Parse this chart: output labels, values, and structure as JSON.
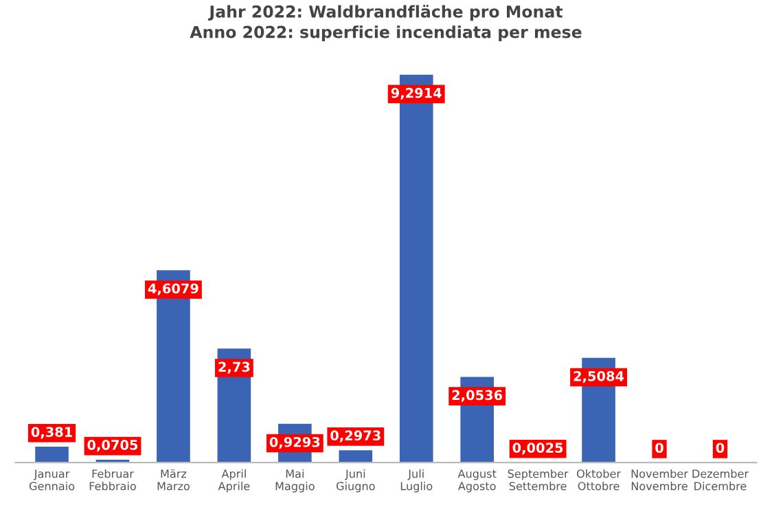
{
  "chart_data": {
    "type": "bar",
    "title": "Jahr 2022: Waldbrandfläche pro Monat",
    "subtitle": "Anno 2022: superficie incendiata per mese",
    "categories": [
      "Januar\nGennaio",
      "Februar\nFebbraio",
      "März\nMarzo",
      "April\nAprile",
      "Mai\nMaggio",
      "Juni\nGiugno",
      "Juli\nLuglio",
      "August\nAgosto",
      "September\nSettembre",
      "Oktober\nOttobre",
      "November\nNovembre",
      "Dezember\nDicembre"
    ],
    "values": [
      0.381,
      0.0705,
      4.6079,
      2.73,
      0.9293,
      0.2973,
      9.2914,
      2.0536,
      0.0025,
      2.5084,
      0,
      0
    ],
    "value_labels": [
      "0,381",
      "0,0705",
      "4,6079",
      "2,73",
      "0,9293",
      "0,2973",
      "9,2914",
      "2,0536",
      "0,0025",
      "2,5084",
      "0",
      "0"
    ],
    "color": "#3c64b4",
    "grid": false,
    "legend": false
  }
}
